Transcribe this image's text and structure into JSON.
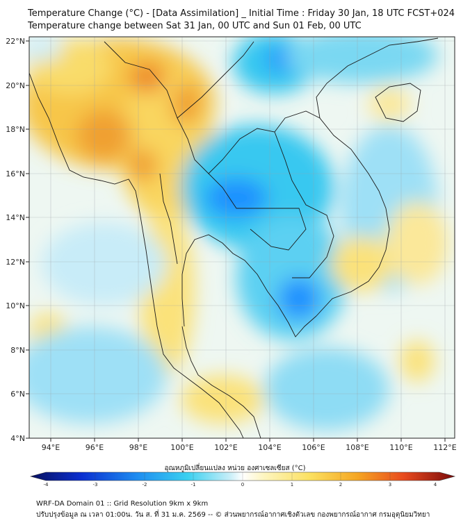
{
  "title_line1": "Temperature Change (°C) - [Data Assimilation] _ Initial Time : Friday 30 Jan, 18 UTC FCST+024",
  "title_line2": "Temperature change between Sat 31 Jan, 00 UTC and Sun 01 Feb, 00 UTC",
  "lat_labels": [
    "22°N",
    "20°N",
    "18°N",
    "16°N",
    "14°N",
    "12°N",
    "10°N",
    "8°N",
    "6°N",
    "4°N"
  ],
  "lon_labels": [
    "94°E",
    "96°E",
    "98°E",
    "100°E",
    "102°E",
    "104°E",
    "106°E",
    "108°E",
    "110°E",
    "112°E"
  ],
  "colorbar": {
    "label": "อุณหภูมิเปลี่ยนแปลง หน่วย องศาเซลเซียส (°C)",
    "ticks": [
      "-4",
      "-3",
      "-2",
      "-1",
      "0",
      "1",
      "2",
      "3",
      "4"
    ],
    "range": [
      -4,
      4
    ]
  },
  "footer_line1": "WRF-DA Domain 01 :: Grid Resolution 9km x 9km",
  "footer_line2": "ปรับปรุงข้อมูล ณ เวลา 01:00น. วัน ส. ที่ 31 ม.ค. 2569 -- © ส่วนพยากรณ์อากาศเชิงตัวเลข กองพยากรณ์อากาศ กรมอุตุนิยมวิทยา",
  "colors": {
    "cold_strong": "#1e90ff",
    "cold": "#35c8f0",
    "cool": "#a8e4f8",
    "neutral": "#f4f8f2",
    "warm": "#fbe27a",
    "hot": "#f5a623",
    "very_hot": "#ef6a2a"
  }
}
